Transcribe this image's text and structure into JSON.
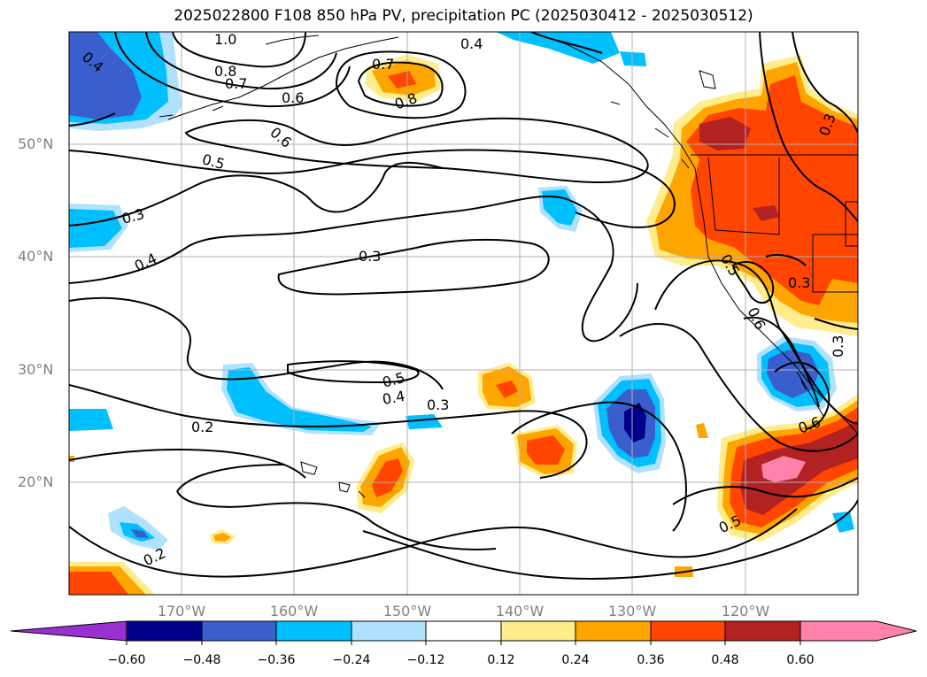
{
  "title": "2025022800 F108 850 hPa PV, precipitation PC (2025030412 - 2025030512)",
  "lat_labels": [
    "50°N",
    "40°N",
    "30°N",
    "20°N"
  ],
  "lon_labels": [
    "170°W",
    "160°W",
    "150°W",
    "140°W",
    "130°W",
    "120°W"
  ],
  "colorbar": {
    "ticks": [
      "−0.60",
      "−0.48",
      "−0.36",
      "−0.24",
      "−0.12",
      "0.12",
      "0.24",
      "0.36",
      "0.48",
      "0.60"
    ],
    "colors": [
      "#9b30d0",
      "#00008b",
      "#3a5fcd",
      "#00bfff",
      "#b0e2ff",
      "#ffffff",
      "#ffec8b",
      "#ffa500",
      "#ff4500",
      "#b22222",
      "#ff82ab",
      "#ff82ab"
    ]
  },
  "contour_labels": [
    "1.0",
    "0.8",
    "0.7",
    "0.6",
    "0.4",
    "0.7",
    "0.8",
    "0.6",
    "0.5",
    "0.3",
    "0.4",
    "0.3",
    "0.5",
    "0.4",
    "0.3",
    "0.2",
    "0.2",
    "0.4",
    "0.3",
    "0.5",
    "0.6",
    "0.3",
    "0.3",
    "0.6",
    "0.5"
  ]
}
